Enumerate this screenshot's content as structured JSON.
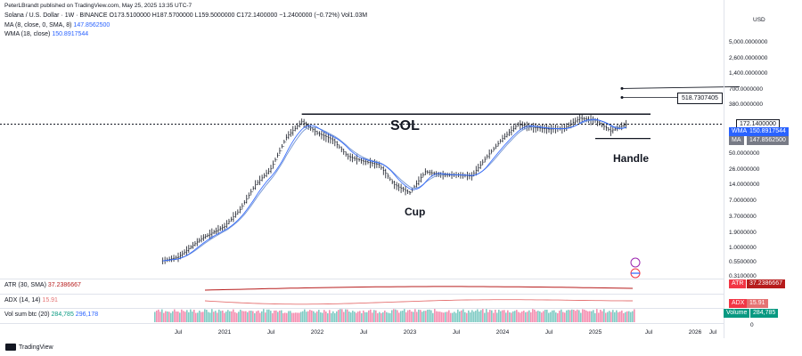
{
  "header": {
    "publisher": "PeterLBrandt published on TradingView.com, May 25, 2025 13:35 UTC-7",
    "symbol": "Solana / U.S. Dollar · 1W · BINANCE",
    "ohlc": "O173.5100000 H187.5700000 L159.5000000 C172.1400000 −1.2400000 (−0.72%) Vol1.03M",
    "ma": "MA (8, close, 0, SMA, 8)",
    "ma_value": "147.8562500",
    "wma": "WMA (18, close)",
    "wma_value": "150.8917544"
  },
  "indicators": {
    "atr_label": "ATR (30, SMA)",
    "atr_value": "37.2386667",
    "adx_label": "ADX (14, 14)",
    "adx_value": "15.91",
    "vol_label": "Vol sum btc (20)",
    "vol_value1": "284,785",
    "vol_value2": "296,178"
  },
  "price_axis": {
    "currency": "USD",
    "ticks": [
      "5,000.0000000",
      "2,600.0000000",
      "1,400.0000000",
      "700.0000000",
      "380.0000000",
      "50.0000000",
      "26.0000000",
      "14.0000000",
      "7.0000000",
      "3.7000000",
      "1.9000000",
      "1.0000000",
      "0.5500000",
      "0.3100000"
    ],
    "last_price": "172.1400000",
    "wma_tag_label": "WMA",
    "wma_tag_value": "150.8917544",
    "ma_tag_label": "MA",
    "ma_tag_value": "147.8562500",
    "atr_tag_label": "ATR",
    "atr_tag_value": "37.2386667",
    "adx_tag_label": "ADX",
    "adx_tag_value": "15.91",
    "vol_tag_label": "Volume",
    "vol_tag_value": "284,785",
    "zero_tick": "0"
  },
  "time_axis": [
    "Jul",
    "2021",
    "Jul",
    "2022",
    "Jul",
    "2023",
    "Jul",
    "2024",
    "Jul",
    "2025",
    "Jul",
    "2026",
    "Jul"
  ],
  "annotations": {
    "sol": "SOL",
    "cup": "Cup",
    "handle": "Handle",
    "target": "518.7307405"
  },
  "footer": {
    "brand": "TradingView"
  },
  "colors": {
    "candle": "#131722",
    "ma": "#2962ff",
    "wma": "#7b9bd6",
    "atr": "#b71c1c",
    "adx": "#e57373",
    "vol_teal": "#80cbc4",
    "vol_pink": "#f48fb1",
    "tag_blue": "#2962ff",
    "tag_grey": "#787b86",
    "tag_red": "#f23645",
    "tag_green": "#089981"
  },
  "chart_data": {
    "type": "line",
    "title": "Solana / U.S. Dollar · 1W · BINANCE",
    "yscale": "log",
    "ylim": [
      0.31,
      5000
    ],
    "x": [
      "2020-05",
      "2020-07",
      "2020-10",
      "2021-01",
      "2021-03",
      "2021-05",
      "2021-07",
      "2021-09",
      "2021-11",
      "2022-01",
      "2022-03",
      "2022-05",
      "2022-07",
      "2022-09",
      "2022-11",
      "2023-01",
      "2023-03",
      "2023-05",
      "2023-07",
      "2023-09",
      "2023-11",
      "2024-01",
      "2024-03",
      "2024-05",
      "2024-07",
      "2024-09",
      "2024-11",
      "2025-01",
      "2025-03",
      "2025-05"
    ],
    "series": [
      {
        "values": [
          0.6,
          0.7,
          1.5,
          2.5,
          5.0,
          14,
          27,
          100,
          190,
          120,
          90,
          45,
          37,
          32,
          14,
          10,
          24,
          21,
          21,
          20,
          45,
          95,
          170,
          150,
          140,
          145,
          220,
          200,
          130,
          172
        ]
      }
    ],
    "resistance_level": 260,
    "handle_low_level": 95,
    "target_level": 518.7307405,
    "last_price": 172.14
  }
}
